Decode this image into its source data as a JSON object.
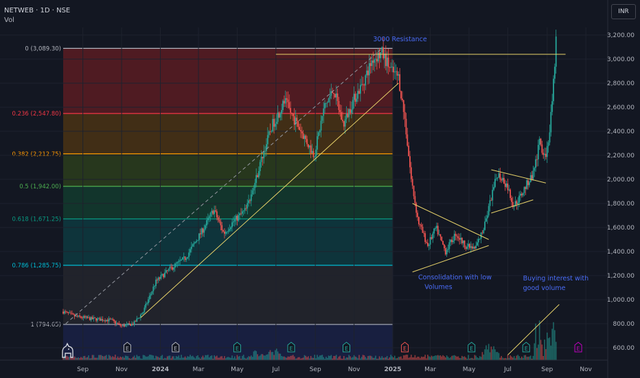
{
  "header": {
    "symbol_line": "NETWEB · 1D · NSE",
    "volume_label": "Vol",
    "currency_button": "INR"
  },
  "colors": {
    "background": "#131722",
    "grid": "#1e222d",
    "axis_text": "#b2b5be",
    "candle_up": "#26a69a",
    "candle_down": "#ef5350",
    "trendline": "#e8d36a",
    "annotation_text": "#4a6cf7"
  },
  "chart_data": {
    "type": "candlestick",
    "xlabel": "",
    "ylabel": "",
    "x_range": [
      "2023-08-01",
      "2025-11-30"
    ],
    "ylim": [
      500,
      3250
    ],
    "y_ticks": [
      "3,200.00",
      "3,000.00",
      "2,800.00",
      "2,600.00",
      "2,400.00",
      "2,200.00",
      "2,000.00",
      "1,800.00",
      "1,600.00",
      "1,400.00",
      "1,200.00",
      "1,000.00",
      "800.00",
      "600.00"
    ],
    "y_tick_values": [
      3200,
      3000,
      2800,
      2600,
      2400,
      2200,
      2000,
      1800,
      1600,
      1400,
      1200,
      1000,
      800,
      600
    ],
    "x_ticks": [
      {
        "label": "Sep",
        "date": "2023-09-01"
      },
      {
        "label": "Nov",
        "date": "2023-11-01"
      },
      {
        "label": "2024",
        "date": "2024-01-01"
      },
      {
        "label": "Mar",
        "date": "2024-03-01"
      },
      {
        "label": "May",
        "date": "2024-05-01"
      },
      {
        "label": "Jul",
        "date": "2024-07-01"
      },
      {
        "label": "Sep",
        "date": "2024-09-01"
      },
      {
        "label": "Nov",
        "date": "2024-11-01"
      },
      {
        "label": "2025",
        "date": "2025-01-01"
      },
      {
        "label": "Mar",
        "date": "2025-03-01"
      },
      {
        "label": "May",
        "date": "2025-05-01"
      },
      {
        "label": "Jul",
        "date": "2025-07-01"
      },
      {
        "label": "Sep",
        "date": "2025-09-01"
      },
      {
        "label": "Nov",
        "date": "2025-11-01"
      }
    ],
    "price_path": [
      [
        "2023-08-01",
        900
      ],
      [
        "2023-08-20",
        860
      ],
      [
        "2023-09-15",
        840
      ],
      [
        "2023-10-15",
        830
      ],
      [
        "2023-11-01",
        780
      ],
      [
        "2023-11-20",
        800
      ],
      [
        "2023-12-05",
        900
      ],
      [
        "2023-12-25",
        1150
      ],
      [
        "2024-01-15",
        1250
      ],
      [
        "2024-02-10",
        1350
      ],
      [
        "2024-03-10",
        1600
      ],
      [
        "2024-03-25",
        1750
      ],
      [
        "2024-04-10",
        1550
      ],
      [
        "2024-04-25",
        1650
      ],
      [
        "2024-05-15",
        1750
      ],
      [
        "2024-05-25",
        1900
      ],
      [
        "2024-06-10",
        2200
      ],
      [
        "2024-06-25",
        2450
      ],
      [
        "2024-07-15",
        2650
      ],
      [
        "2024-07-30",
        2500
      ],
      [
        "2024-08-15",
        2350
      ],
      [
        "2024-08-30",
        2200
      ],
      [
        "2024-09-15",
        2600
      ],
      [
        "2024-09-30",
        2750
      ],
      [
        "2024-10-15",
        2450
      ],
      [
        "2024-10-30",
        2650
      ],
      [
        "2024-11-15",
        2800
      ],
      [
        "2024-11-30",
        3000
      ],
      [
        "2024-12-15",
        3050
      ],
      [
        "2024-12-30",
        2900
      ],
      [
        "2025-01-10",
        2850
      ],
      [
        "2025-01-20",
        2500
      ],
      [
        "2025-01-30",
        2000
      ],
      [
        "2025-02-10",
        1650
      ],
      [
        "2025-02-25",
        1450
      ],
      [
        "2025-03-10",
        1600
      ],
      [
        "2025-03-25",
        1400
      ],
      [
        "2025-04-10",
        1550
      ],
      [
        "2025-04-25",
        1450
      ],
      [
        "2025-05-10",
        1420
      ],
      [
        "2025-05-25",
        1600
      ],
      [
        "2025-06-05",
        1850
      ],
      [
        "2025-06-15",
        2050
      ],
      [
        "2025-06-30",
        1950
      ],
      [
        "2025-07-10",
        1780
      ],
      [
        "2025-07-20",
        1850
      ],
      [
        "2025-07-30",
        1950
      ],
      [
        "2025-08-10",
        2050
      ],
      [
        "2025-08-20",
        2300
      ],
      [
        "2025-08-30",
        2200
      ],
      [
        "2025-09-05",
        2400
      ],
      [
        "2025-09-10",
        2700
      ],
      [
        "2025-09-15",
        3150
      ]
    ],
    "fibonacci": {
      "start_date": "2023-08-01",
      "end_date": "2025-01-01",
      "levels": [
        {
          "label": "0 (3,089.30)",
          "price": 3089.3,
          "line_color": "#b2b5be",
          "label_color": "#b2b5be",
          "fill": "#5b1c22"
        },
        {
          "label": "0.236 (2,547.80)",
          "price": 2547.8,
          "line_color": "#f23645",
          "label_color": "#f23645",
          "fill": "#4a3214"
        },
        {
          "label": "0.382 (2,212.75)",
          "price": 2212.75,
          "line_color": "#ff9800",
          "label_color": "#ff9800",
          "fill": "#2c3d1c"
        },
        {
          "label": "0.5 (1,942.00)",
          "price": 1942.0,
          "line_color": "#4caf50",
          "label_color": "#4caf50",
          "fill": "#133b2e"
        },
        {
          "label": "0.618 (1,671.25)",
          "price": 1671.25,
          "line_color": "#089981",
          "label_color": "#089981",
          "fill": "#0e3a3f"
        },
        {
          "label": "0.786 (1,285.75)",
          "price": 1285.75,
          "line_color": "#00bcd4",
          "label_color": "#00bcd4",
          "fill": "#24262d"
        },
        {
          "label": "1 (794.65)",
          "price": 794.65,
          "line_color": "#b2b5be",
          "label_color": "#b2b5be",
          "fill": "#1a2145"
        }
      ]
    },
    "trendlines": [
      {
        "name": "resistance",
        "from": [
          "2024-07-01",
          3040
        ],
        "to": [
          "2025-09-30",
          3040
        ]
      },
      {
        "name": "rising-support",
        "from": [
          "2023-12-01",
          850
        ],
        "to": [
          "2025-01-10",
          2800
        ]
      },
      {
        "name": "fib-diagonal",
        "dashed": true,
        "from": [
          "2023-08-05",
          800
        ],
        "to": [
          "2024-12-15",
          3089.3
        ]
      },
      {
        "name": "triangle-upper",
        "from": [
          "2025-02-01",
          1800
        ],
        "to": [
          "2025-06-01",
          1500
        ]
      },
      {
        "name": "triangle-lower",
        "from": [
          "2025-02-01",
          1230
        ],
        "to": [
          "2025-06-01",
          1450
        ]
      },
      {
        "name": "channel-upper",
        "from": [
          "2025-06-05",
          2080
        ],
        "to": [
          "2025-08-30",
          1970
        ]
      },
      {
        "name": "channel-lower",
        "from": [
          "2025-06-05",
          1720
        ],
        "to": [
          "2025-08-10",
          1830
        ]
      },
      {
        "name": "volume-trend",
        "from": [
          "2025-07-01",
          540
        ],
        "to": [
          "2025-09-20",
          960
        ]
      }
    ],
    "annotations": [
      {
        "text": "3000 Resistance",
        "date": "2024-12-01",
        "price": 3150
      },
      {
        "text": "Consolidation with low",
        "date": "2025-02-10",
        "price": 1170
      },
      {
        "text": "Volumes",
        "date": "2025-02-20",
        "price": 1090
      },
      {
        "text": "Buying interest with",
        "date": "2025-07-25",
        "price": 1160
      },
      {
        "text": "good volume",
        "date": "2025-07-25",
        "price": 1080
      }
    ],
    "earnings_markers": [
      {
        "date": "2023-11-10",
        "color": "#b2b5be"
      },
      {
        "date": "2024-01-25",
        "color": "#b2b5be"
      },
      {
        "date": "2024-05-01",
        "color": "#26a69a"
      },
      {
        "date": "2024-07-25",
        "color": "#26a69a"
      },
      {
        "date": "2024-10-20",
        "color": "#26a69a"
      },
      {
        "date": "2025-01-20",
        "color": "#ef5350"
      },
      {
        "date": "2025-05-05",
        "color": "#26a69a"
      },
      {
        "date": "2025-07-30",
        "color": "#26a69a"
      },
      {
        "date": "2025-10-20",
        "color": "#c200c2"
      }
    ],
    "earnings_marker_label": "E"
  }
}
